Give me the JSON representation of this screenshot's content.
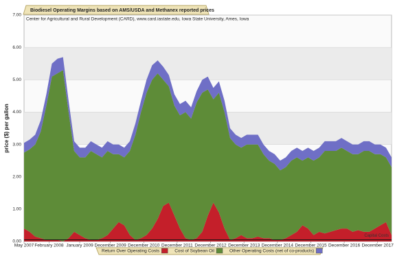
{
  "chart_data": {
    "type": "stacked-area",
    "title": "Biodiesel Operating Margins based on AMS/USDA and Methanex reported prices",
    "subtitle": "Center for Agricultural and Rural Development (CARD), www.card.iastate.edu, Iowa State University, Ames, Iowa",
    "y_label": "price ($) per gallon",
    "annotation": {
      "text": "Capital Costs",
      "value": 0.05
    },
    "x": [
      "2007-05",
      "2007-07",
      "2007-09",
      "2007-11",
      "2008-01",
      "2008-03",
      "2008-05",
      "2008-07",
      "2008-09",
      "2008-11",
      "2009-01",
      "2009-03",
      "2009-05",
      "2009-07",
      "2009-09",
      "2009-11",
      "2010-01",
      "2010-03",
      "2010-05",
      "2010-07",
      "2010-09",
      "2010-11",
      "2011-01",
      "2011-03",
      "2011-05",
      "2011-07",
      "2011-09",
      "2011-11",
      "2012-01",
      "2012-03",
      "2012-05",
      "2012-07",
      "2012-09",
      "2012-11",
      "2013-01",
      "2013-03",
      "2013-05",
      "2013-07",
      "2013-09",
      "2013-11",
      "2014-01",
      "2014-03",
      "2014-05",
      "2014-07",
      "2014-09",
      "2014-11",
      "2015-01",
      "2015-03",
      "2015-05",
      "2015-07",
      "2015-09",
      "2015-11",
      "2016-01",
      "2016-03",
      "2016-05",
      "2016-07",
      "2016-09",
      "2016-11",
      "2017-01",
      "2017-03",
      "2017-05",
      "2017-07",
      "2017-09",
      "2017-11",
      "2018-01",
      "2018-03",
      "2018-05"
    ],
    "series": [
      {
        "name": "Return Over Operating Costs",
        "color": "#c41f2a",
        "values": [
          0.4,
          0.3,
          0.15,
          0.1,
          0.05,
          0.05,
          0.05,
          0,
          0.1,
          0.3,
          0.2,
          0.1,
          0.05,
          0.05,
          0.1,
          0.2,
          0.4,
          0.6,
          0.5,
          0.2,
          0.05,
          0.1,
          0.2,
          0.4,
          0.7,
          1.1,
          1.2,
          0.8,
          0.4,
          0.1,
          0.05,
          0.1,
          0.3,
          0.8,
          1.2,
          0.9,
          0.4,
          0.05,
          0.1,
          0.2,
          0.1,
          0.1,
          0.15,
          0.1,
          0.1,
          0.05,
          0.05,
          0.1,
          0.2,
          0.3,
          0.5,
          0.4,
          0.2,
          0.3,
          0.25,
          0.3,
          0.35,
          0.4,
          0.4,
          0.3,
          0.35,
          0.3,
          0.3,
          0.4,
          0.5,
          0.6,
          0.2
        ]
      },
      {
        "name": "Cost of Soybean Oil",
        "color": "#5e8c38",
        "values": [
          2.35,
          2.55,
          2.85,
          3.3,
          4.15,
          5.05,
          5.15,
          5.3,
          3.9,
          2.5,
          2.4,
          2.5,
          2.75,
          2.65,
          2.5,
          2.6,
          2.3,
          2.1,
          2.1,
          2.6,
          3.25,
          3.9,
          4.4,
          4.6,
          4.5,
          3.9,
          3.6,
          3.4,
          3.5,
          3.9,
          3.75,
          4.2,
          4.3,
          3.9,
          3.2,
          3.7,
          3.6,
          3.15,
          2.9,
          2.7,
          2.9,
          2.9,
          2.85,
          2.6,
          2.4,
          2.35,
          2.15,
          2.2,
          2.3,
          2.3,
          2.0,
          2.2,
          2.3,
          2.3,
          2.55,
          2.5,
          2.45,
          2.5,
          2.4,
          2.4,
          2.35,
          2.5,
          2.5,
          2.3,
          2.2,
          2.0,
          2.1
        ]
      },
      {
        "name": "Other Operating Costs (net of co-products)",
        "color": "#6f6fc6",
        "values": [
          0.3,
          0.3,
          0.3,
          0.35,
          0.35,
          0.4,
          0.45,
          0.4,
          0.35,
          0.3,
          0.3,
          0.3,
          0.3,
          0.3,
          0.3,
          0.3,
          0.3,
          0.3,
          0.3,
          0.3,
          0.35,
          0.35,
          0.4,
          0.45,
          0.4,
          0.4,
          0.35,
          0.35,
          0.35,
          0.35,
          0.35,
          0.35,
          0.4,
          0.4,
          0.35,
          0.35,
          0.35,
          0.3,
          0.3,
          0.3,
          0.3,
          0.3,
          0.3,
          0.3,
          0.3,
          0.3,
          0.3,
          0.3,
          0.3,
          0.3,
          0.3,
          0.3,
          0.3,
          0.3,
          0.3,
          0.3,
          0.3,
          0.3,
          0.3,
          0.3,
          0.3,
          0.3,
          0.3,
          0.3,
          0.3,
          0.3,
          0.3
        ]
      }
    ],
    "xlim": [
      "2007-05",
      "2018-05"
    ],
    "xticks": [
      {
        "value": "2007-05",
        "label": "May 2007"
      },
      {
        "value": "2008-02",
        "label": "February 2008"
      },
      {
        "value": "2009-01",
        "label": "January 2009"
      },
      {
        "value": "2009-12",
        "label": "December 2009"
      },
      {
        "value": "2010-12",
        "label": "December 2010"
      },
      {
        "value": "2011-12",
        "label": "December 2011"
      },
      {
        "value": "2012-12",
        "label": "December 2012"
      },
      {
        "value": "2013-12",
        "label": "December 2013"
      },
      {
        "value": "2014-12",
        "label": "December 2014"
      },
      {
        "value": "2015-12",
        "label": "December 2015"
      },
      {
        "value": "2016-12",
        "label": "December 2016"
      },
      {
        "value": "2017-12",
        "label": "December 2017"
      }
    ],
    "ylim": [
      0,
      7
    ],
    "yticks": [
      {
        "value": 0,
        "label": "0.00"
      },
      {
        "value": 1,
        "label": "1.00"
      },
      {
        "value": 2,
        "label": "2.00"
      },
      {
        "value": 3,
        "label": "3.00"
      },
      {
        "value": 4,
        "label": "4.00"
      },
      {
        "value": 5,
        "label": "5.00"
      },
      {
        "value": 6,
        "label": "6.00"
      },
      {
        "value": 7,
        "label": "7.00"
      }
    ],
    "grid": true
  }
}
